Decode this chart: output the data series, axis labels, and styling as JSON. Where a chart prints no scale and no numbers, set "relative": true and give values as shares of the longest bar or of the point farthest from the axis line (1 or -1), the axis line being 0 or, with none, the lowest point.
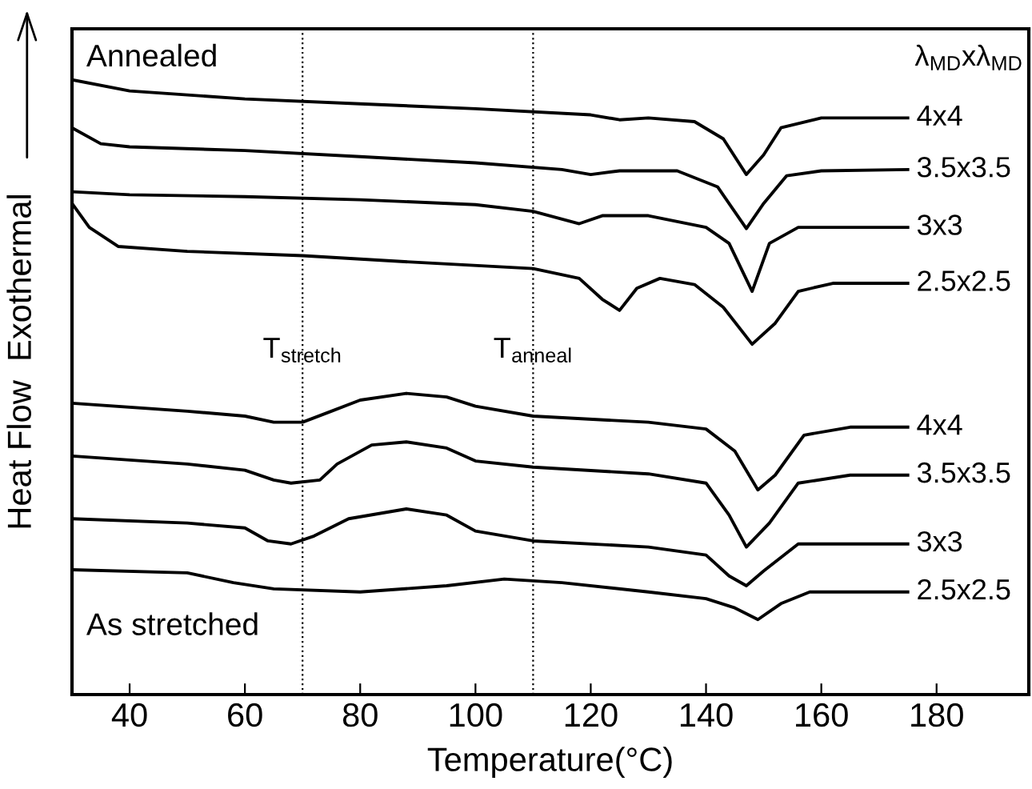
{
  "chart_data": {
    "type": "line",
    "relative": true,
    "xlabel": "Temperature(°C)",
    "ylabel": "Heat Flow  Exothermal",
    "xlim": [
      30,
      196
    ],
    "xticks": [
      40,
      60,
      80,
      100,
      120,
      140,
      160,
      180
    ],
    "tick_labels": "x",
    "grid": false,
    "legend": false,
    "marker": "none",
    "line_style": "solid",
    "annotations": [
      "Annealed",
      "As stretched",
      "λ$_{MD}$xλ$_{MD}$"
    ],
    "ref_lines": [
      {
        "axis": "x",
        "value": 70,
        "label": "T$_{stretch}$",
        "line_style": "dotted",
        "color": "#000000"
      },
      {
        "axis": "x",
        "value": 110,
        "label": "T$_{anneal}$",
        "line_style": "dotted",
        "color": "#000000"
      }
    ],
    "series": [
      {
        "name": "4x4",
        "color": "#000000",
        "x": [
          30,
          40,
          60,
          80,
          100,
          120,
          125,
          130,
          138,
          143,
          147,
          150,
          153,
          160,
          175
        ],
        "values": [
          1.0,
          0.982,
          0.969,
          0.961,
          0.953,
          0.943,
          0.935,
          0.938,
          0.932,
          0.904,
          0.846,
          0.878,
          0.922,
          0.938,
          0.938
        ]
      },
      {
        "name": "3.5x3.5",
        "color": "#000000",
        "x": [
          30,
          35,
          40,
          60,
          80,
          100,
          115,
          120,
          125,
          135,
          142,
          147,
          150,
          154,
          160,
          175
        ],
        "values": [
          0.922,
          0.896,
          0.891,
          0.885,
          0.875,
          0.865,
          0.854,
          0.846,
          0.852,
          0.852,
          0.826,
          0.758,
          0.799,
          0.844,
          0.852,
          0.854
        ]
      },
      {
        "name": "3x3",
        "color": "#000000",
        "x": [
          30,
          40,
          60,
          80,
          100,
          110,
          118,
          122,
          130,
          140,
          144,
          148,
          151,
          156,
          175
        ],
        "values": [
          0.818,
          0.813,
          0.81,
          0.805,
          0.797,
          0.786,
          0.766,
          0.779,
          0.779,
          0.76,
          0.734,
          0.656,
          0.734,
          0.76,
          0.76
        ]
      },
      {
        "name": "2.5x2.5",
        "color": "#000000",
        "x": [
          30,
          33,
          38,
          50,
          70,
          90,
          110,
          118,
          122,
          125,
          128,
          132,
          138,
          143,
          148,
          152,
          156,
          162,
          175
        ],
        "values": [
          0.799,
          0.76,
          0.729,
          0.721,
          0.714,
          0.703,
          0.693,
          0.677,
          0.643,
          0.625,
          0.661,
          0.677,
          0.667,
          0.63,
          0.57,
          0.604,
          0.656,
          0.669,
          0.669
        ]
      },
      {
        "name": "4x4",
        "color": "#000000",
        "x": [
          30,
          50,
          60,
          65,
          70,
          75,
          80,
          88,
          95,
          100,
          110,
          130,
          140,
          145,
          149,
          152,
          157,
          165,
          175
        ],
        "values": [
          0.474,
          0.461,
          0.453,
          0.443,
          0.443,
          0.461,
          0.479,
          0.49,
          0.484,
          0.469,
          0.453,
          0.443,
          0.432,
          0.396,
          0.333,
          0.357,
          0.422,
          0.435,
          0.435
        ]
      },
      {
        "name": "3.5x3.5",
        "color": "#000000",
        "x": [
          30,
          50,
          60,
          65,
          68,
          73,
          76,
          82,
          88,
          95,
          100,
          110,
          130,
          140,
          144,
          147,
          151,
          156,
          165,
          175
        ],
        "values": [
          0.388,
          0.375,
          0.365,
          0.349,
          0.344,
          0.349,
          0.375,
          0.406,
          0.411,
          0.401,
          0.38,
          0.37,
          0.359,
          0.344,
          0.292,
          0.24,
          0.279,
          0.344,
          0.357,
          0.357
        ]
      },
      {
        "name": "3x3",
        "color": "#000000",
        "x": [
          30,
          50,
          60,
          64,
          68,
          72,
          78,
          88,
          95,
          100,
          110,
          130,
          140,
          144,
          147,
          150,
          156,
          175
        ],
        "values": [
          0.286,
          0.279,
          0.271,
          0.25,
          0.245,
          0.258,
          0.286,
          0.302,
          0.292,
          0.266,
          0.25,
          0.24,
          0.227,
          0.193,
          0.177,
          0.201,
          0.245,
          0.245
        ]
      },
      {
        "name": "2.5x2.5",
        "color": "#000000",
        "x": [
          30,
          50,
          58,
          65,
          80,
          95,
          105,
          115,
          130,
          140,
          145,
          149,
          153,
          158,
          175
        ],
        "values": [
          0.203,
          0.198,
          0.182,
          0.172,
          0.167,
          0.177,
          0.188,
          0.182,
          0.167,
          0.156,
          0.141,
          0.122,
          0.148,
          0.167,
          0.167
        ]
      }
    ]
  }
}
